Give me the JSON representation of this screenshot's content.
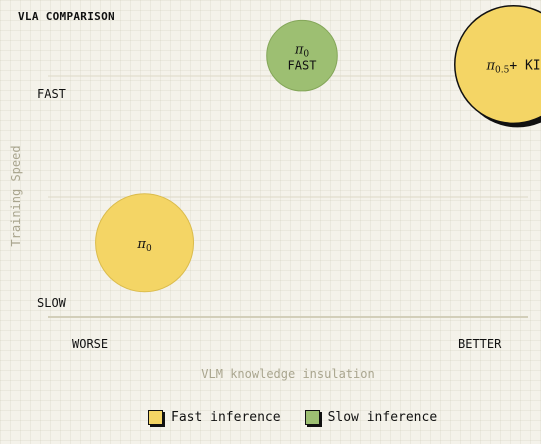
{
  "title": "VLA COMPARISON",
  "chart_data": {
    "type": "scatter",
    "xlabel": "VLM knowledge insulation",
    "ylabel": "Training Speed",
    "x_ticks": [
      "WORSE",
      "BETTER"
    ],
    "y_ticks": [
      "SLOW",
      "FAST"
    ],
    "xlim": [
      0,
      1
    ],
    "ylim": [
      0,
      1
    ],
    "series": [
      {
        "name": "Fast inference",
        "color": "#f4d565"
      },
      {
        "name": "Slow inference",
        "color": "#9dbf72"
      }
    ],
    "points": [
      {
        "label_base": "π",
        "label_sub": "0",
        "label_suffix": "",
        "label_line2": "",
        "x": 0.18,
        "y": 0.25,
        "size": 1.0,
        "series": "Fast inference",
        "highlight": false
      },
      {
        "label_base": "π",
        "label_sub": "0",
        "label_suffix": "",
        "label_line2": "FAST",
        "x": 0.5,
        "y": 0.88,
        "size": 0.72,
        "series": "Slow inference",
        "highlight": false
      },
      {
        "label_base": "π",
        "label_sub": "0.5",
        "label_suffix": "+ KI",
        "label_line2": "",
        "x": 0.93,
        "y": 0.85,
        "size": 1.2,
        "series": "Fast inference",
        "highlight": true
      }
    ],
    "grid": true,
    "legend_position": "bottom"
  }
}
